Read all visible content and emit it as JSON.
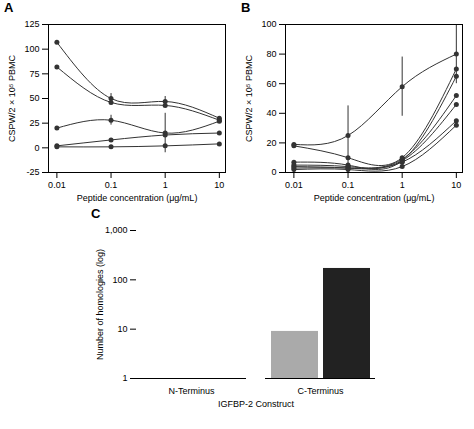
{
  "chart_data": [
    {
      "type": "line",
      "title": "A",
      "x": [
        0.01,
        0.1,
        1,
        10
      ],
      "series": [
        {
          "values": [
            107,
            50,
            47,
            30
          ],
          "yerr": [
            null,
            5,
            5,
            null
          ]
        },
        {
          "values": [
            82,
            46,
            43,
            28
          ],
          "yerr": [
            null,
            null,
            null,
            null
          ]
        },
        {
          "values": [
            20,
            28,
            15,
            27
          ],
          "yerr": [
            null,
            5,
            20,
            null
          ]
        },
        {
          "values": [
            2,
            8,
            13,
            15
          ],
          "yerr": [
            null,
            null,
            null,
            null
          ]
        },
        {
          "values": [
            1,
            1,
            2,
            4
          ],
          "yerr": [
            null,
            null,
            null,
            null
          ]
        }
      ],
      "xlabel": "Peptide concentration (μg/mL)",
      "ylabel": "CSPW/2 × 10⁵ PBMC",
      "log": "x",
      "xlim": [
        0.007,
        13
      ],
      "xticks": [
        0.01,
        0.1,
        1,
        10
      ],
      "ylim": [
        -25,
        125
      ],
      "yticks": [
        -25,
        0,
        25,
        50,
        75,
        100,
        125
      ],
      "color": "#333333",
      "marker": "circle",
      "grid": false
    },
    {
      "type": "line",
      "title": "B",
      "x": [
        0.01,
        0.1,
        1,
        10
      ],
      "series": [
        {
          "values": [
            19,
            25,
            58,
            80
          ],
          "yerr": [
            null,
            20,
            20,
            20
          ]
        },
        {
          "values": [
            18,
            10,
            10,
            70
          ],
          "yerr": [
            null,
            null,
            null,
            null
          ]
        },
        {
          "values": [
            7,
            5,
            8,
            65
          ],
          "yerr": [
            null,
            null,
            null,
            null
          ]
        },
        {
          "values": [
            5,
            4,
            9,
            52
          ],
          "yerr": [
            null,
            null,
            null,
            null
          ]
        },
        {
          "values": [
            4,
            3,
            8,
            46
          ],
          "yerr": [
            null,
            null,
            null,
            null
          ]
        },
        {
          "values": [
            3,
            3,
            7,
            35
          ],
          "yerr": [
            null,
            null,
            null,
            null
          ]
        },
        {
          "values": [
            2,
            2,
            4,
            32
          ],
          "yerr": [
            null,
            null,
            null,
            null
          ]
        }
      ],
      "xlabel": "Peptide concentration (μg/mL)",
      "ylabel": "CSPW/2 × 10⁵ PBMC",
      "log": "x",
      "xlim": [
        0.007,
        13
      ],
      "xticks": [
        0.01,
        0.1,
        1,
        10
      ],
      "ylim": [
        0,
        100
      ],
      "yticks": [
        0,
        20,
        40,
        60,
        80,
        100
      ],
      "color": "#333333",
      "marker": "circle",
      "grid": false
    },
    {
      "type": "bar",
      "title": "C",
      "categories": [
        "N-Terminus",
        "C-Terminus"
      ],
      "series": [
        {
          "color": "#aaaaaa",
          "values": [
            1,
            9
          ]
        },
        {
          "color": "#222222",
          "values": [
            null,
            170
          ]
        }
      ],
      "xlabel": "IGFBP-2 Construct",
      "ylabel": "Number of homologies (log)",
      "log": "y",
      "ylim": [
        1,
        1000
      ],
      "yticks": [
        1,
        10,
        100,
        {
          "value": 1000,
          "label": "1,000"
        }
      ],
      "grid": false
    }
  ]
}
